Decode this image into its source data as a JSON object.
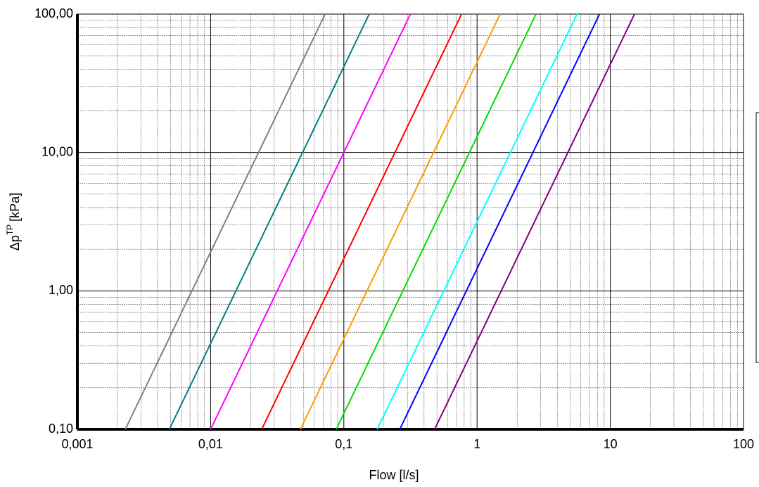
{
  "chart_data": {
    "type": "line",
    "xlabel": "Flow [l/s]",
    "ylabel": "Δp",
    "ylabel_sup": "TP",
    "ylabel_unit": "[kPa]",
    "xscale": "log",
    "yscale": "log",
    "xlim": [
      0.001,
      100
    ],
    "ylim": [
      0.1,
      100
    ],
    "xticks": [
      {
        "value": 0.001,
        "label": "0,001"
      },
      {
        "value": 0.01,
        "label": "0,01"
      },
      {
        "value": 0.1,
        "label": "0,1"
      },
      1,
      10,
      100
    ],
    "yticks": [
      {
        "value": 0.1,
        "label": "0,10"
      },
      {
        "value": 1,
        "label": "1,00"
      },
      {
        "value": 10,
        "label": "10,00"
      },
      {
        "value": 100,
        "label": "100,00"
      }
    ],
    "grid": true,
    "minor_grid": true,
    "series": [
      {
        "color": "#808080",
        "x": [
          0.00229,
          0.0724
        ],
        "values": [
          0.1,
          100
        ]
      },
      {
        "color": "#008080",
        "x": [
          0.0049,
          0.155
        ],
        "values": [
          0.1,
          100
        ]
      },
      {
        "color": "#ff00ff",
        "x": [
          0.01,
          0.316
        ],
        "values": [
          0.1,
          100
        ]
      },
      {
        "color": "#ff0000",
        "x": [
          0.0242,
          0.765
        ],
        "values": [
          0.1,
          100
        ]
      },
      {
        "color": "#ff9900",
        "x": [
          0.0472,
          1.49
        ],
        "values": [
          0.1,
          100
        ]
      },
      {
        "color": "#00dd00",
        "x": [
          0.0877,
          2.77
        ],
        "values": [
          0.1,
          100
        ]
      },
      {
        "color": "#00ffff",
        "x": [
          0.178,
          5.63
        ],
        "values": [
          0.1,
          100
        ]
      },
      {
        "color": "#0000ff",
        "x": [
          0.263,
          8.3
        ],
        "values": [
          0.1,
          100
        ]
      },
      {
        "color": "#800080",
        "x": [
          0.48,
          15.2
        ],
        "values": [
          0.1,
          100
        ]
      }
    ]
  }
}
